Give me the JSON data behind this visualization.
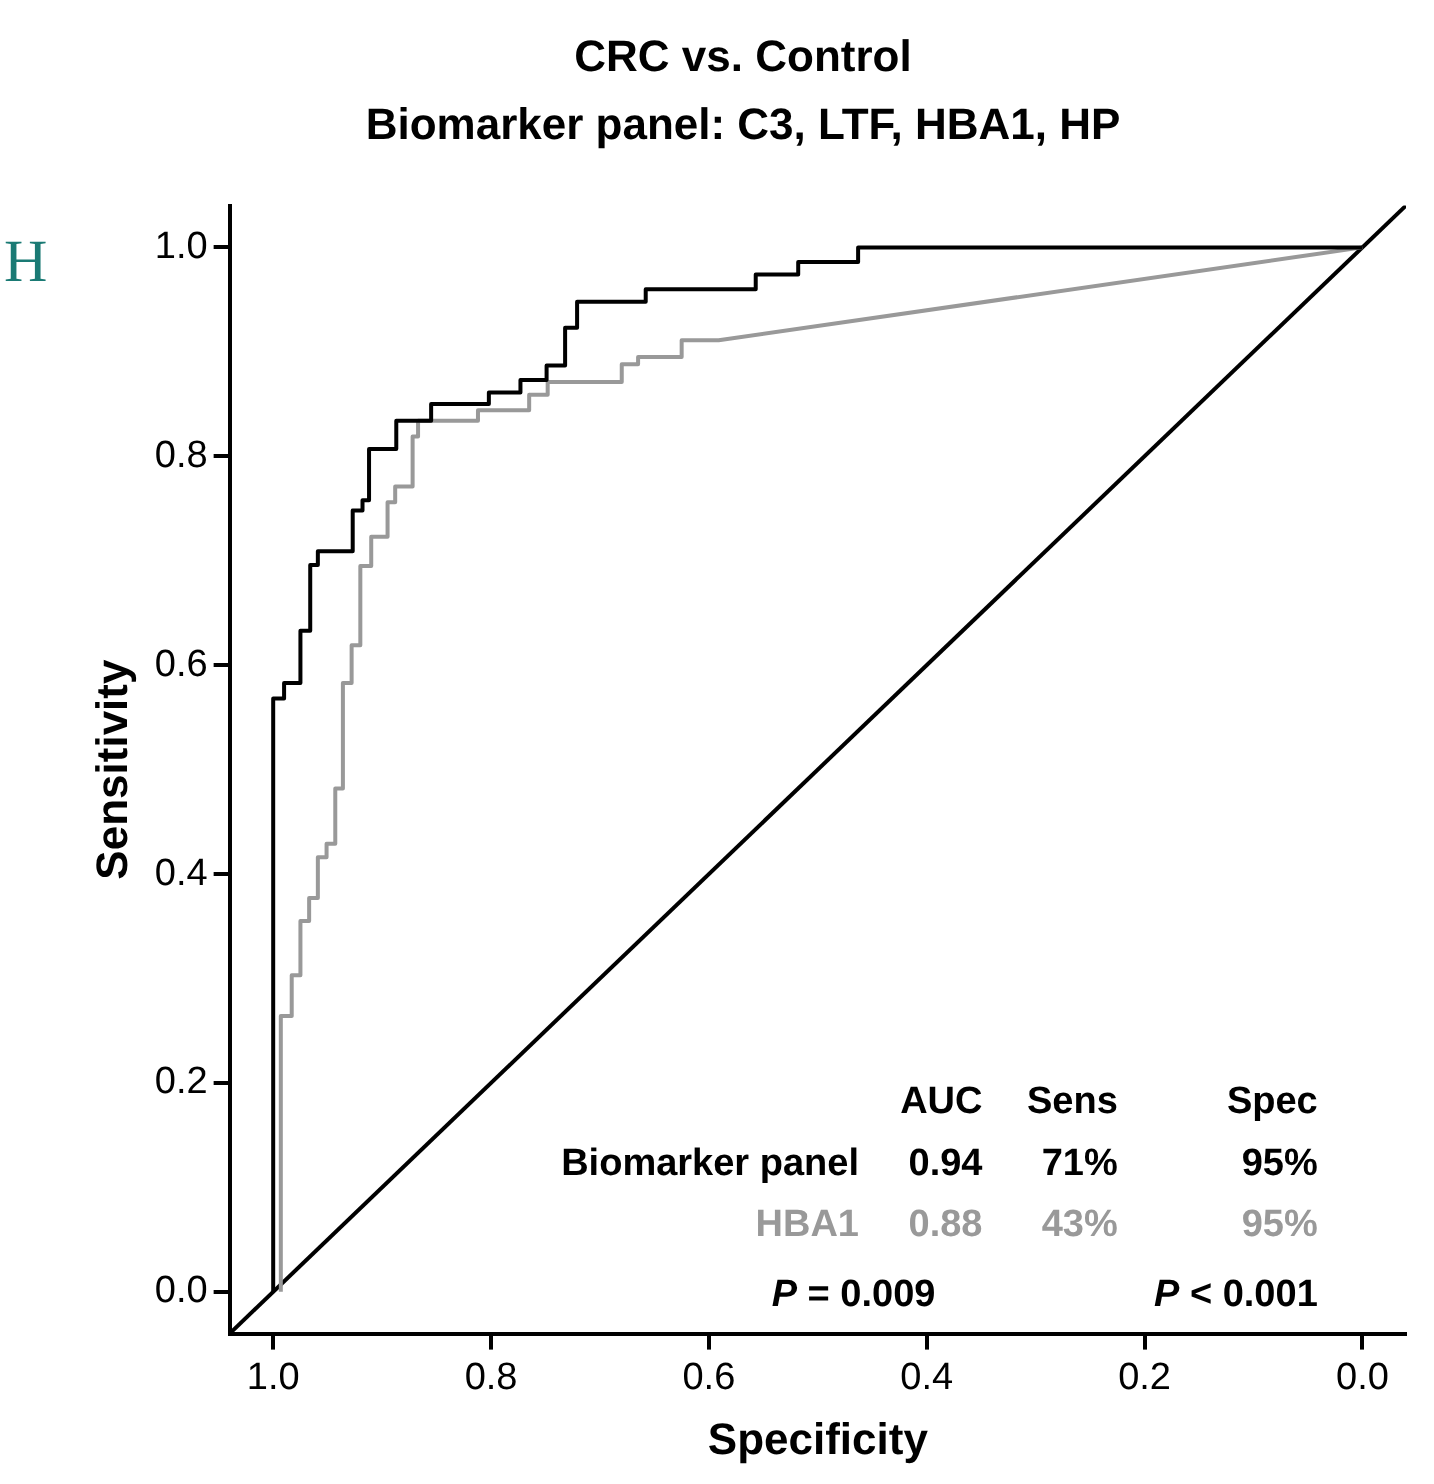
{
  "chart_data": {
    "type": "line",
    "title": "CRC vs. Control",
    "subtitle": "Biomarker panel: C3, LTF, HBA1, HP",
    "xlabel": "Specificity",
    "ylabel": "Sensitivity",
    "xlim": [
      1.04,
      -0.04
    ],
    "ylim": [
      -0.04,
      1.04
    ],
    "xticks": [
      {
        "value": 1,
        "label": "1.0"
      },
      0.8,
      0.6,
      0.4,
      0.2,
      {
        "value": 0,
        "label": "0.0"
      }
    ],
    "yticks": [
      {
        "value": 0,
        "label": "0.0"
      },
      0.2,
      0.4,
      0.6,
      0.8,
      {
        "value": 1,
        "label": "1.0"
      }
    ],
    "grid": false,
    "legend": false,
    "marker": "none",
    "line_style": "solid",
    "annotations": [
      "AUC",
      "Sens",
      "Spec",
      "0.94",
      "71%",
      "95%",
      "0.88",
      "43%",
      "95%",
      "P = 0.009",
      "P < 0.001",
      "H"
    ],
    "series": [
      {
        "name": "Biomarker panel",
        "color": "#000000",
        "x": [
          1.0,
          1.0,
          0.99,
          0.99,
          0.975,
          0.975,
          0.966,
          0.966,
          0.959,
          0.959,
          0.927,
          0.927,
          0.918,
          0.918,
          0.912,
          0.912,
          0.887,
          0.887,
          0.855,
          0.855,
          0.802,
          0.802,
          0.773,
          0.773,
          0.749,
          0.749,
          0.732,
          0.732,
          0.721,
          0.721,
          0.658,
          0.658,
          0.557,
          0.557,
          0.518,
          0.518,
          0.463,
          0.463,
          0
        ],
        "values": [
          0,
          0.568,
          0.568,
          0.583,
          0.583,
          0.633,
          0.633,
          0.696,
          0.696,
          0.709,
          0.709,
          0.748,
          0.748,
          0.758,
          0.758,
          0.807,
          0.807,
          0.834,
          0.834,
          0.85,
          0.85,
          0.861,
          0.861,
          0.873,
          0.873,
          0.887,
          0.887,
          0.923,
          0.923,
          0.948,
          0.948,
          0.96,
          0.96,
          0.974,
          0.974,
          0.986,
          0.986,
          1.0,
          1.0
        ]
      },
      {
        "name": "HBA1",
        "color": "#999999",
        "x": [
          0.993,
          0.993,
          0.983,
          0.983,
          0.975,
          0.975,
          0.967,
          0.967,
          0.959,
          0.959,
          0.951,
          0.951,
          0.943,
          0.943,
          0.936,
          0.936,
          0.928,
          0.928,
          0.92,
          0.92,
          0.91,
          0.91,
          0.895,
          0.895,
          0.888,
          0.888,
          0.872,
          0.872,
          0.867,
          0.867,
          0.812,
          0.812,
          0.765,
          0.765,
          0.748,
          0.748,
          0.68,
          0.68,
          0.665,
          0.665,
          0.625,
          0.625,
          0.591,
          0
        ],
        "values": [
          0,
          0.264,
          0.264,
          0.303,
          0.303,
          0.355,
          0.355,
          0.377,
          0.377,
          0.416,
          0.416,
          0.429,
          0.429,
          0.482,
          0.482,
          0.583,
          0.583,
          0.619,
          0.619,
          0.695,
          0.695,
          0.723,
          0.723,
          0.756,
          0.756,
          0.771,
          0.771,
          0.819,
          0.819,
          0.834,
          0.834,
          0.844,
          0.844,
          0.859,
          0.859,
          0.871,
          0.871,
          0.888,
          0.888,
          0.895,
          0.895,
          0.911,
          0.911,
          1.0
        ]
      },
      {
        "color": "#000000",
        "x": [
          1.04,
          -0.04
        ],
        "values": [
          -0.04,
          1.04
        ]
      }
    ]
  }
}
